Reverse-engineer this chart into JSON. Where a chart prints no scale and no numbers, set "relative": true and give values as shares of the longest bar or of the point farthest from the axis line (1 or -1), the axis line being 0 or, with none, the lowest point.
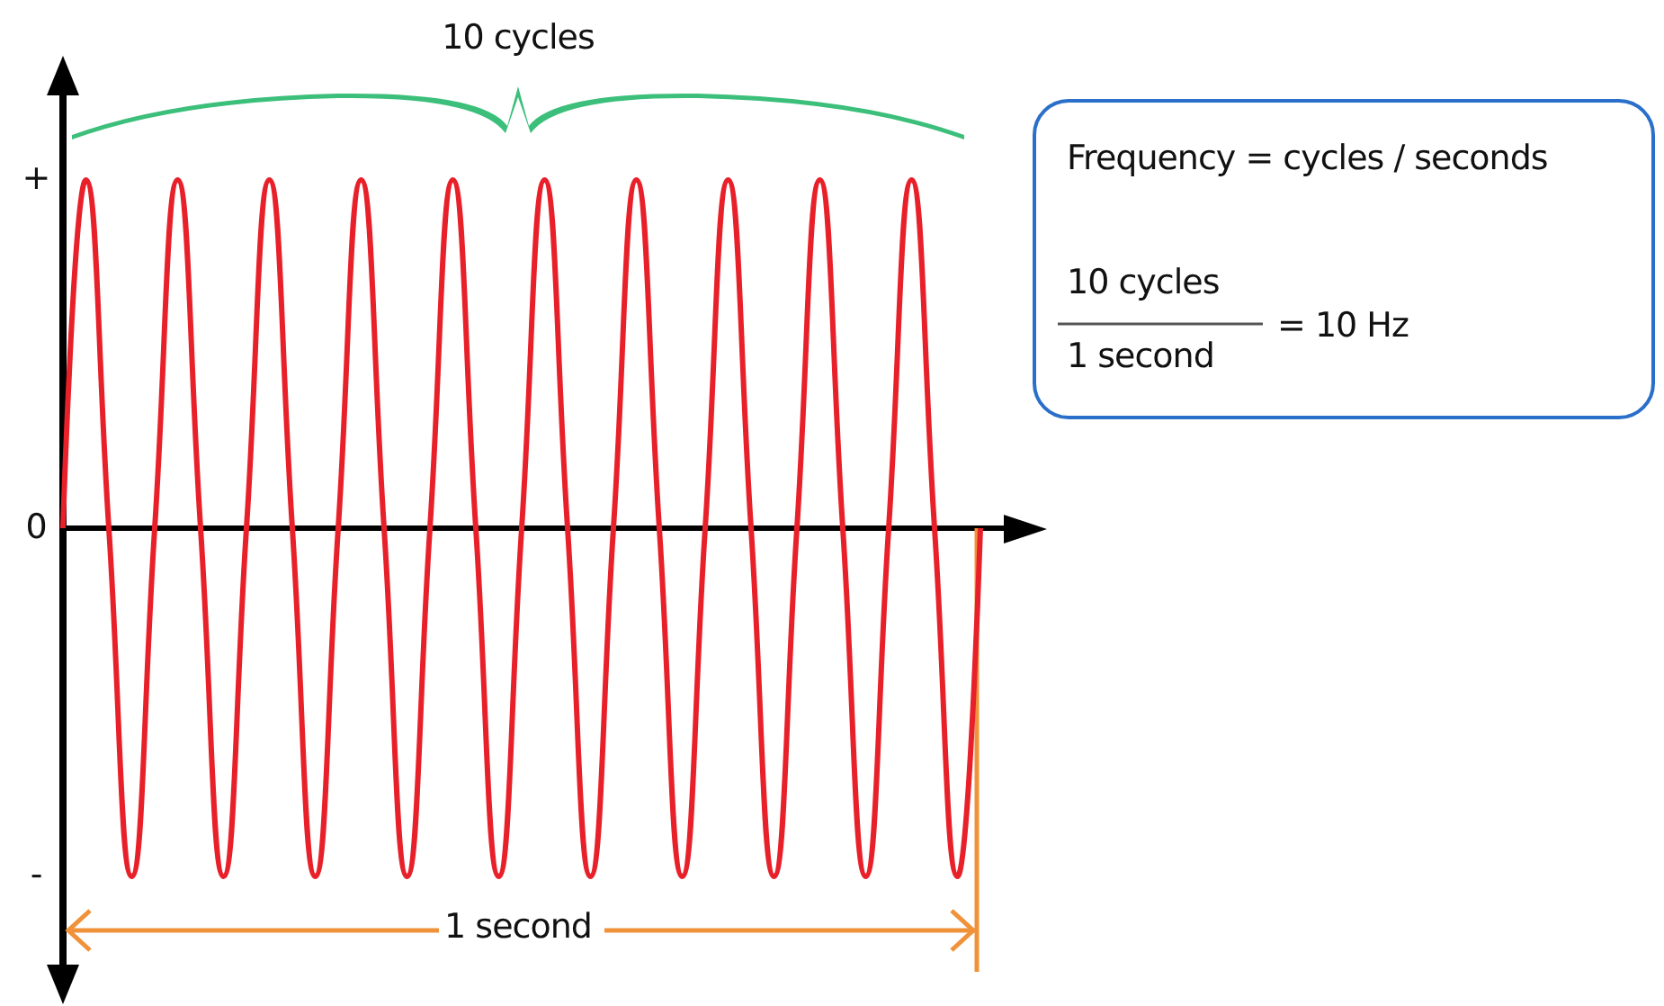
{
  "chart_data": {
    "type": "line",
    "relative": true,
    "line_style": "solid",
    "color": "#e8202a",
    "categories": [
      null,
      null,
      null,
      null,
      null,
      null,
      null,
      null,
      null,
      null,
      null,
      null,
      null,
      null,
      null,
      null,
      null,
      null,
      null,
      null,
      null,
      null,
      null,
      null,
      null,
      null,
      null,
      null,
      null,
      null,
      null,
      null,
      null,
      null,
      null,
      null,
      null,
      null,
      null,
      null,
      null
    ],
    "values": [
      0,
      1,
      0,
      -1,
      0,
      1,
      0,
      -1,
      0,
      1,
      0,
      -1,
      0,
      1,
      0,
      -1,
      0,
      1,
      0,
      -1,
      0,
      1,
      0,
      -1,
      0,
      1,
      0,
      -1,
      0,
      1,
      0,
      -1,
      0,
      1,
      0,
      -1,
      0,
      1,
      0,
      -1,
      0
    ],
    "annotations": [
      "10 cycles",
      "Frequency = cycles / seconds",
      "10 cycles",
      "1 second",
      "= 10 Hz",
      "1 second",
      "+",
      "0",
      "-"
    ]
  }
}
